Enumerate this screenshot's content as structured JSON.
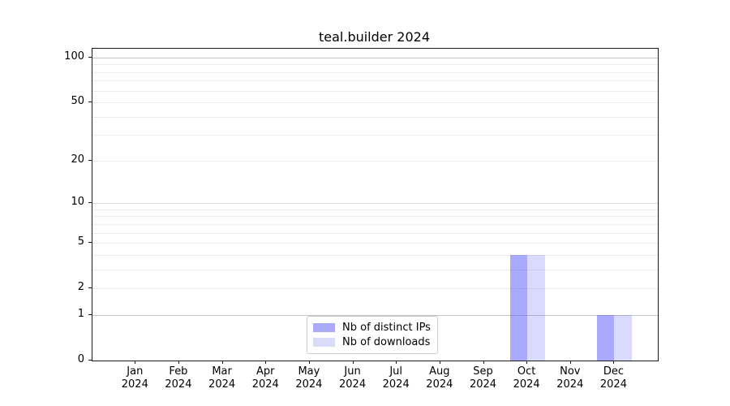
{
  "chart_data": {
    "type": "bar",
    "title": "teal.builder 2024",
    "categories": [
      "Jan 2024",
      "Feb 2024",
      "Mar 2024",
      "Apr 2024",
      "May 2024",
      "Jun 2024",
      "Jul 2024",
      "Aug 2024",
      "Sep 2024",
      "Oct 2024",
      "Nov 2024",
      "Dec 2024"
    ],
    "series": [
      {
        "name": "Nb of distinct IPs",
        "swatch": "#aaaaf8",
        "fill": "rgba(85,85,250,0.5)",
        "values": [
          0,
          0,
          0,
          0,
          0,
          0,
          0,
          0,
          0,
          4,
          0,
          1
        ]
      },
      {
        "name": "Nb of downloads",
        "swatch": "#dadaf9",
        "fill": "rgba(85,85,250,0.22)",
        "values": [
          0,
          0,
          0,
          0,
          0,
          0,
          0,
          0,
          0,
          4,
          0,
          1
        ]
      }
    ],
    "xlabel": "",
    "ylabel": "",
    "y_scale": "log1p",
    "y_ticks": [
      100,
      50,
      20,
      10,
      5,
      2,
      1,
      0
    ],
    "y_minor_grid": [
      2,
      3,
      4,
      5,
      6,
      7,
      8,
      9,
      20,
      30,
      40,
      50,
      60,
      70,
      80,
      90
    ],
    "y_major_grid": [
      1,
      10,
      100
    ],
    "ylim": [
      0,
      115
    ],
    "grid": true,
    "legend_position": "lower center",
    "colors": {
      "major_grid": "#c4c4c4",
      "mid_grid": "#dcdcdc",
      "minor_grid": "#ececec",
      "spine": "#1a1a1a",
      "text": "#000000"
    }
  }
}
